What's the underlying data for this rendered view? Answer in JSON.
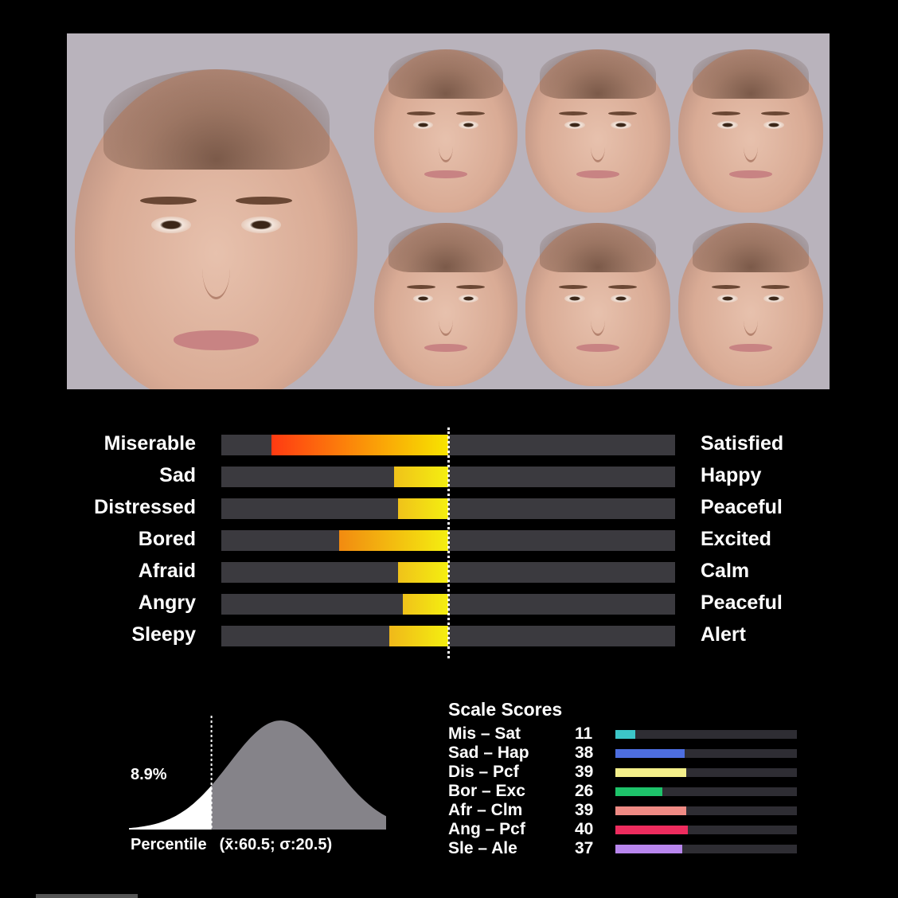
{
  "scales": [
    {
      "left": "Miserable",
      "right": "Satisfied",
      "score": 11,
      "fill_start": 0.11,
      "fill_from": "#ff3a12",
      "fill_to": "#f7e500"
    },
    {
      "left": "Sad",
      "right": "Happy",
      "score": 38,
      "fill_start": 0.38,
      "fill_from": "#f0c21a",
      "fill_to": "#f4ef10"
    },
    {
      "left": "Distressed",
      "right": "Peaceful",
      "score": 39,
      "fill_start": 0.39,
      "fill_from": "#f0c21a",
      "fill_to": "#f4ef10"
    },
    {
      "left": "Bored",
      "right": "Excited",
      "score": 26,
      "fill_start": 0.26,
      "fill_from": "#f28a10",
      "fill_to": "#f4ef10"
    },
    {
      "left": "Afraid",
      "right": "Calm",
      "score": 39,
      "fill_start": 0.39,
      "fill_from": "#f0c21a",
      "fill_to": "#f4ef10"
    },
    {
      "left": "Angry",
      "right": "Peaceful",
      "score": 40,
      "fill_start": 0.4,
      "fill_from": "#f0c21a",
      "fill_to": "#f4ef10"
    },
    {
      "left": "Sleepy",
      "right": "Alert",
      "score": 37,
      "fill_start": 0.37,
      "fill_from": "#f0b81a",
      "fill_to": "#f4ef10"
    }
  ],
  "percentile": {
    "value": "8.9%",
    "label": "Percentile",
    "stats": "(x̄:60.5; σ:20.5)",
    "fraction": 0.089
  },
  "scale_scores": {
    "title": "Scale Scores",
    "items": [
      {
        "name": "Mis – Sat",
        "value": "11",
        "fraction": 0.11,
        "color": "#3cc6c8"
      },
      {
        "name": "Sad – Hap",
        "value": "38",
        "fraction": 0.38,
        "color": "#4d6ee0"
      },
      {
        "name": "Dis – Pcf",
        "value": "39",
        "fraction": 0.39,
        "color": "#f3ef8a"
      },
      {
        "name": "Bor – Exc",
        "value": "26",
        "fraction": 0.26,
        "color": "#1ec36a"
      },
      {
        "name": "Afr – Clm",
        "value": "39",
        "fraction": 0.39,
        "color": "#ef8a84"
      },
      {
        "name": "Ang – Pcf",
        "value": "40",
        "fraction": 0.4,
        "color": "#ee2c5e"
      },
      {
        "name": "Sle – Ale",
        "value": "37",
        "fraction": 0.37,
        "color": "#b886ee"
      }
    ]
  },
  "colors": {
    "track": "#3b3a3f",
    "curve_fill": "#858389",
    "curve_tail": "#ffffff"
  }
}
